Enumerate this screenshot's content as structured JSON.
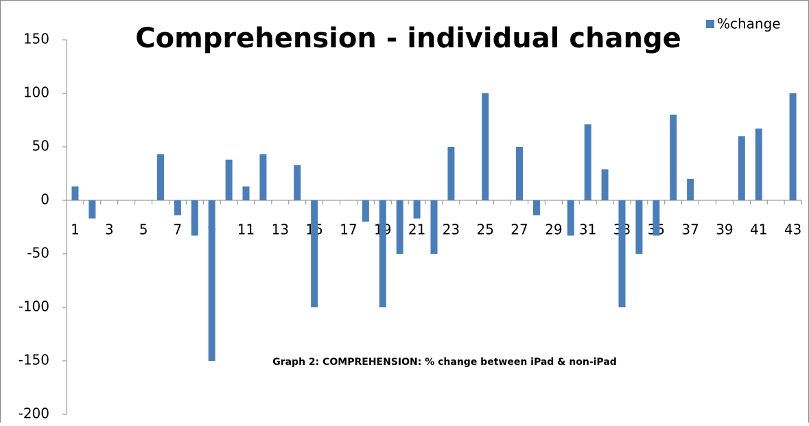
{
  "chart_data": {
    "type": "bar",
    "title": "Comprehension - individual change",
    "annotation": "Graph 2: COMPREHENSION: % change between iPad & non-iPad",
    "categories": [
      "1",
      null,
      "3",
      null,
      "5",
      null,
      "7",
      null,
      "9",
      null,
      "11",
      null,
      "13",
      null,
      "15",
      null,
      "17",
      null,
      "19",
      null,
      "21",
      null,
      "23",
      null,
      "25",
      null,
      "27",
      null,
      "29",
      null,
      "31",
      null,
      "33",
      null,
      "35",
      null,
      "37",
      null,
      "39",
      null,
      "41",
      null,
      "43"
    ],
    "series": [
      {
        "name": "%change",
        "color": "#4a7ebb",
        "values": [
          13,
          -17,
          0,
          0,
          0,
          43,
          -14,
          -33,
          -150,
          38,
          13,
          43,
          0,
          33,
          -100,
          0,
          0,
          -20,
          -100,
          -50,
          -17,
          -50,
          50,
          0,
          100,
          0,
          50,
          -14,
          0,
          -33,
          71,
          29,
          -100,
          -50,
          -33,
          80,
          20,
          0,
          0,
          60,
          67,
          0,
          100
        ]
      }
    ],
    "ylim": [
      -200,
      150
    ],
    "yticks": [
      -200,
      -150,
      -100,
      -50,
      0,
      50,
      100,
      150
    ],
    "legend": "top-right"
  }
}
